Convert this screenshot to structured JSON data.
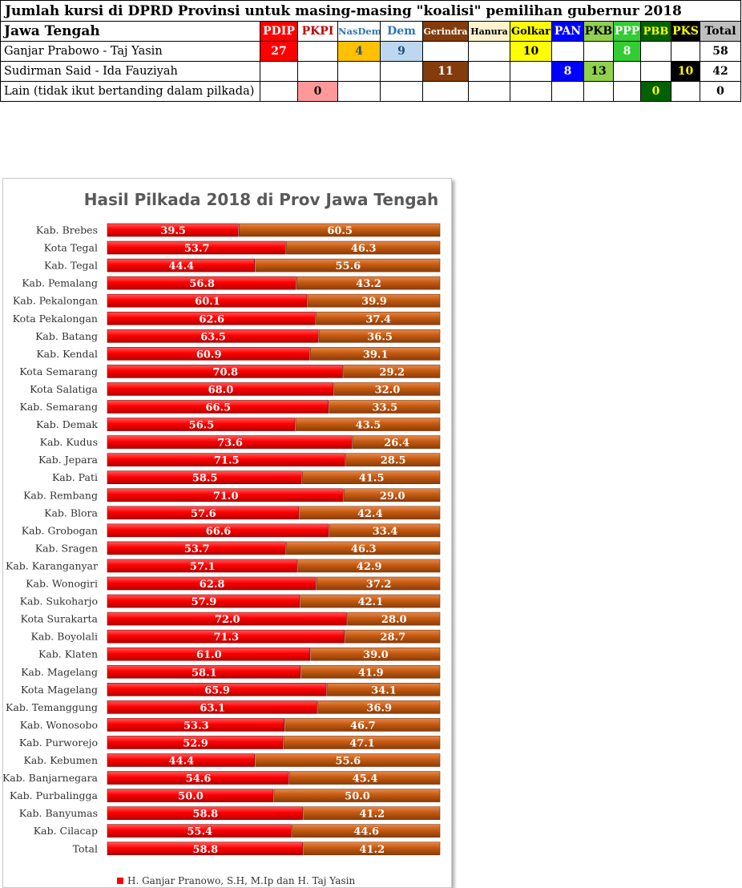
{
  "table": {
    "title": "Jumlah kursi di DPRD Provinsi untuk masing-masing \"koalisi\" pemilihan gubernur 2018",
    "region": "Jawa Tengah",
    "parties": [
      {
        "name": "PDIP",
        "bg": "#ff0000",
        "fg": "#ffffff"
      },
      {
        "name": "PKPI",
        "bg": "#ffffff",
        "fg": "#c00000"
      },
      {
        "name": "NasDem",
        "bg": "#ffffff",
        "fg": "#2e75b6"
      },
      {
        "name": "Dem",
        "bg": "#ffffff",
        "fg": "#2e75b6"
      },
      {
        "name": "Gerindra",
        "bg": "#843c0c",
        "fg": "#ffffff"
      },
      {
        "name": "Hanura",
        "bg": "#fff2cc",
        "fg": "#000000"
      },
      {
        "name": "Golkar",
        "bg": "#ffff00",
        "fg": "#000000"
      },
      {
        "name": "PAN",
        "bg": "#0000ff",
        "fg": "#ffffff"
      },
      {
        "name": "PKB",
        "bg": "#92d050",
        "fg": "#000000"
      },
      {
        "name": "PPP",
        "bg": "#33cc33",
        "fg": "#ffffff"
      },
      {
        "name": "PBB",
        "bg": "#006100",
        "fg": "#ffff00"
      },
      {
        "name": "PKS",
        "bg": "#000000",
        "fg": "#ffff00"
      },
      {
        "name": "Total",
        "bg": "#bfbfbf",
        "fg": "#000000"
      }
    ],
    "rows": [
      {
        "label": "Ganjar Prabowo - Taj Yasin",
        "cells": [
          {
            "v": "27",
            "bg": "#ff0000",
            "fg": "#ffffff"
          },
          {
            "v": "",
            "bg": "#ffffff",
            "fg": "#000000"
          },
          {
            "v": "4",
            "bg": "#ffc000",
            "fg": "#1f4e79"
          },
          {
            "v": "9",
            "bg": "#bdd7ee",
            "fg": "#1f4e79"
          },
          {
            "v": "",
            "bg": "#ffffff",
            "fg": "#000000"
          },
          {
            "v": "",
            "bg": "#ffffff",
            "fg": "#000000"
          },
          {
            "v": "10",
            "bg": "#ffff00",
            "fg": "#000000"
          },
          {
            "v": "",
            "bg": "#ffffff",
            "fg": "#000000"
          },
          {
            "v": "",
            "bg": "#ffffff",
            "fg": "#000000"
          },
          {
            "v": "8",
            "bg": "#33cc33",
            "fg": "#ffffff"
          },
          {
            "v": "",
            "bg": "#ffffff",
            "fg": "#000000"
          },
          {
            "v": "",
            "bg": "#ffffff",
            "fg": "#000000"
          },
          {
            "v": "58",
            "bg": "#ffffff",
            "fg": "#000000"
          }
        ]
      },
      {
        "label": "Sudirman Said - Ida Fauziyah",
        "cells": [
          {
            "v": "",
            "bg": "#ffffff",
            "fg": "#000000"
          },
          {
            "v": "",
            "bg": "#ffffff",
            "fg": "#000000"
          },
          {
            "v": "",
            "bg": "#ffffff",
            "fg": "#000000"
          },
          {
            "v": "",
            "bg": "#ffffff",
            "fg": "#000000"
          },
          {
            "v": "11",
            "bg": "#843c0c",
            "fg": "#ffffff"
          },
          {
            "v": "",
            "bg": "#ffffff",
            "fg": "#000000"
          },
          {
            "v": "",
            "bg": "#ffffff",
            "fg": "#000000"
          },
          {
            "v": "8",
            "bg": "#0000ff",
            "fg": "#ffffff"
          },
          {
            "v": "13",
            "bg": "#92d050",
            "fg": "#000000"
          },
          {
            "v": "",
            "bg": "#ffffff",
            "fg": "#000000"
          },
          {
            "v": "",
            "bg": "#ffffff",
            "fg": "#000000"
          },
          {
            "v": "10",
            "bg": "#000000",
            "fg": "#ffff00"
          },
          {
            "v": "42",
            "bg": "#ffffff",
            "fg": "#000000"
          }
        ]
      },
      {
        "label": "Lain (tidak ikut bertanding dalam pilkada)",
        "cells": [
          {
            "v": "",
            "bg": "#ffffff",
            "fg": "#000000"
          },
          {
            "v": "0",
            "bg": "#ff9999",
            "fg": "#000000"
          },
          {
            "v": "",
            "bg": "#ffffff",
            "fg": "#000000"
          },
          {
            "v": "",
            "bg": "#ffffff",
            "fg": "#000000"
          },
          {
            "v": "",
            "bg": "#ffffff",
            "fg": "#000000"
          },
          {
            "v": "",
            "bg": "#ffffff",
            "fg": "#000000"
          },
          {
            "v": "",
            "bg": "#ffffff",
            "fg": "#000000"
          },
          {
            "v": "",
            "bg": "#ffffff",
            "fg": "#000000"
          },
          {
            "v": "",
            "bg": "#ffffff",
            "fg": "#000000"
          },
          {
            "v": "",
            "bg": "#ffffff",
            "fg": "#000000"
          },
          {
            "v": "0",
            "bg": "#006100",
            "fg": "#ffff00"
          },
          {
            "v": "",
            "bg": "#ffffff",
            "fg": "#000000"
          },
          {
            "v": "0",
            "bg": "#ffffff",
            "fg": "#000000"
          }
        ]
      }
    ]
  },
  "chart_data": {
    "type": "bar",
    "orientation": "horizontal",
    "stacked": "100%",
    "title": "Hasil Pilkada 2018 di Prov Jawa Tengah",
    "categories": [
      "Kab. Brebes",
      "Kota Tegal",
      "Kab. Tegal",
      "Kab. Pemalang",
      "Kab. Pekalongan",
      "Kota Pekalongan",
      "Kab. Batang",
      "Kab. Kendal",
      "Kota Semarang",
      "Kota Salatiga",
      "Kab. Semarang",
      "Kab. Demak",
      "Kab. Kudus",
      "Kab. Jepara",
      "Kab. Pati",
      "Kab. Rembang",
      "Kab. Blora",
      "Kab. Grobogan",
      "Kab. Sragen",
      "Kab. Karanganyar",
      "Kab. Wonogiri",
      "Kab. Sukoharjo",
      "Kota Surakarta",
      "Kab. Boyolali",
      "Kab. Klaten",
      "Kab. Magelang",
      "Kota Magelang",
      "Kab. Temanggung",
      "Kab. Wonosobo",
      "Kab. Purworejo",
      "Kab. Kebumen",
      "Kab. Banjarnegara",
      "Kab. Purbalingga",
      "Kab. Banyumas",
      "Kab. Cilacap",
      "Total"
    ],
    "series": [
      {
        "name": "H. Ganjar Pranowo, S.H, M.Ip dan H. Taj Yasin",
        "color": "#ff0000",
        "values": [
          "39.5",
          "53.7",
          "44.4",
          "56.8",
          "60.1",
          "62.6",
          "63.5",
          "60.9",
          "70.8",
          "68.0",
          "66.5",
          "56.5",
          "73.6",
          "71.5",
          "58.5",
          "71.0",
          "57.6",
          "66.6",
          "53.7",
          "57.1",
          "62.8",
          "57.9",
          "72.0",
          "71.3",
          "61.0",
          "58.1",
          "65.9",
          "63.1",
          "53.3",
          "52.9",
          "44.4",
          "54.6",
          "50.0",
          "58.8",
          "55.4",
          "58.8"
        ]
      },
      {
        "name": "",
        "color": "#c55a11",
        "values": [
          "60.5",
          "46.3",
          "55.6",
          "43.2",
          "39.9",
          "37.4",
          "36.5",
          "39.1",
          "29.2",
          "32.0",
          "33.5",
          "43.5",
          "26.4",
          "28.5",
          "41.5",
          "29.0",
          "42.4",
          "33.4",
          "46.3",
          "42.9",
          "37.2",
          "42.1",
          "28.0",
          "28.7",
          "39.0",
          "41.9",
          "34.1",
          "36.9",
          "46.7",
          "47.1",
          "55.6",
          "45.4",
          "50.0",
          "41.2",
          "44.6",
          "41.2"
        ]
      }
    ],
    "xlim": [
      0,
      100
    ],
    "legend": "bottom"
  }
}
